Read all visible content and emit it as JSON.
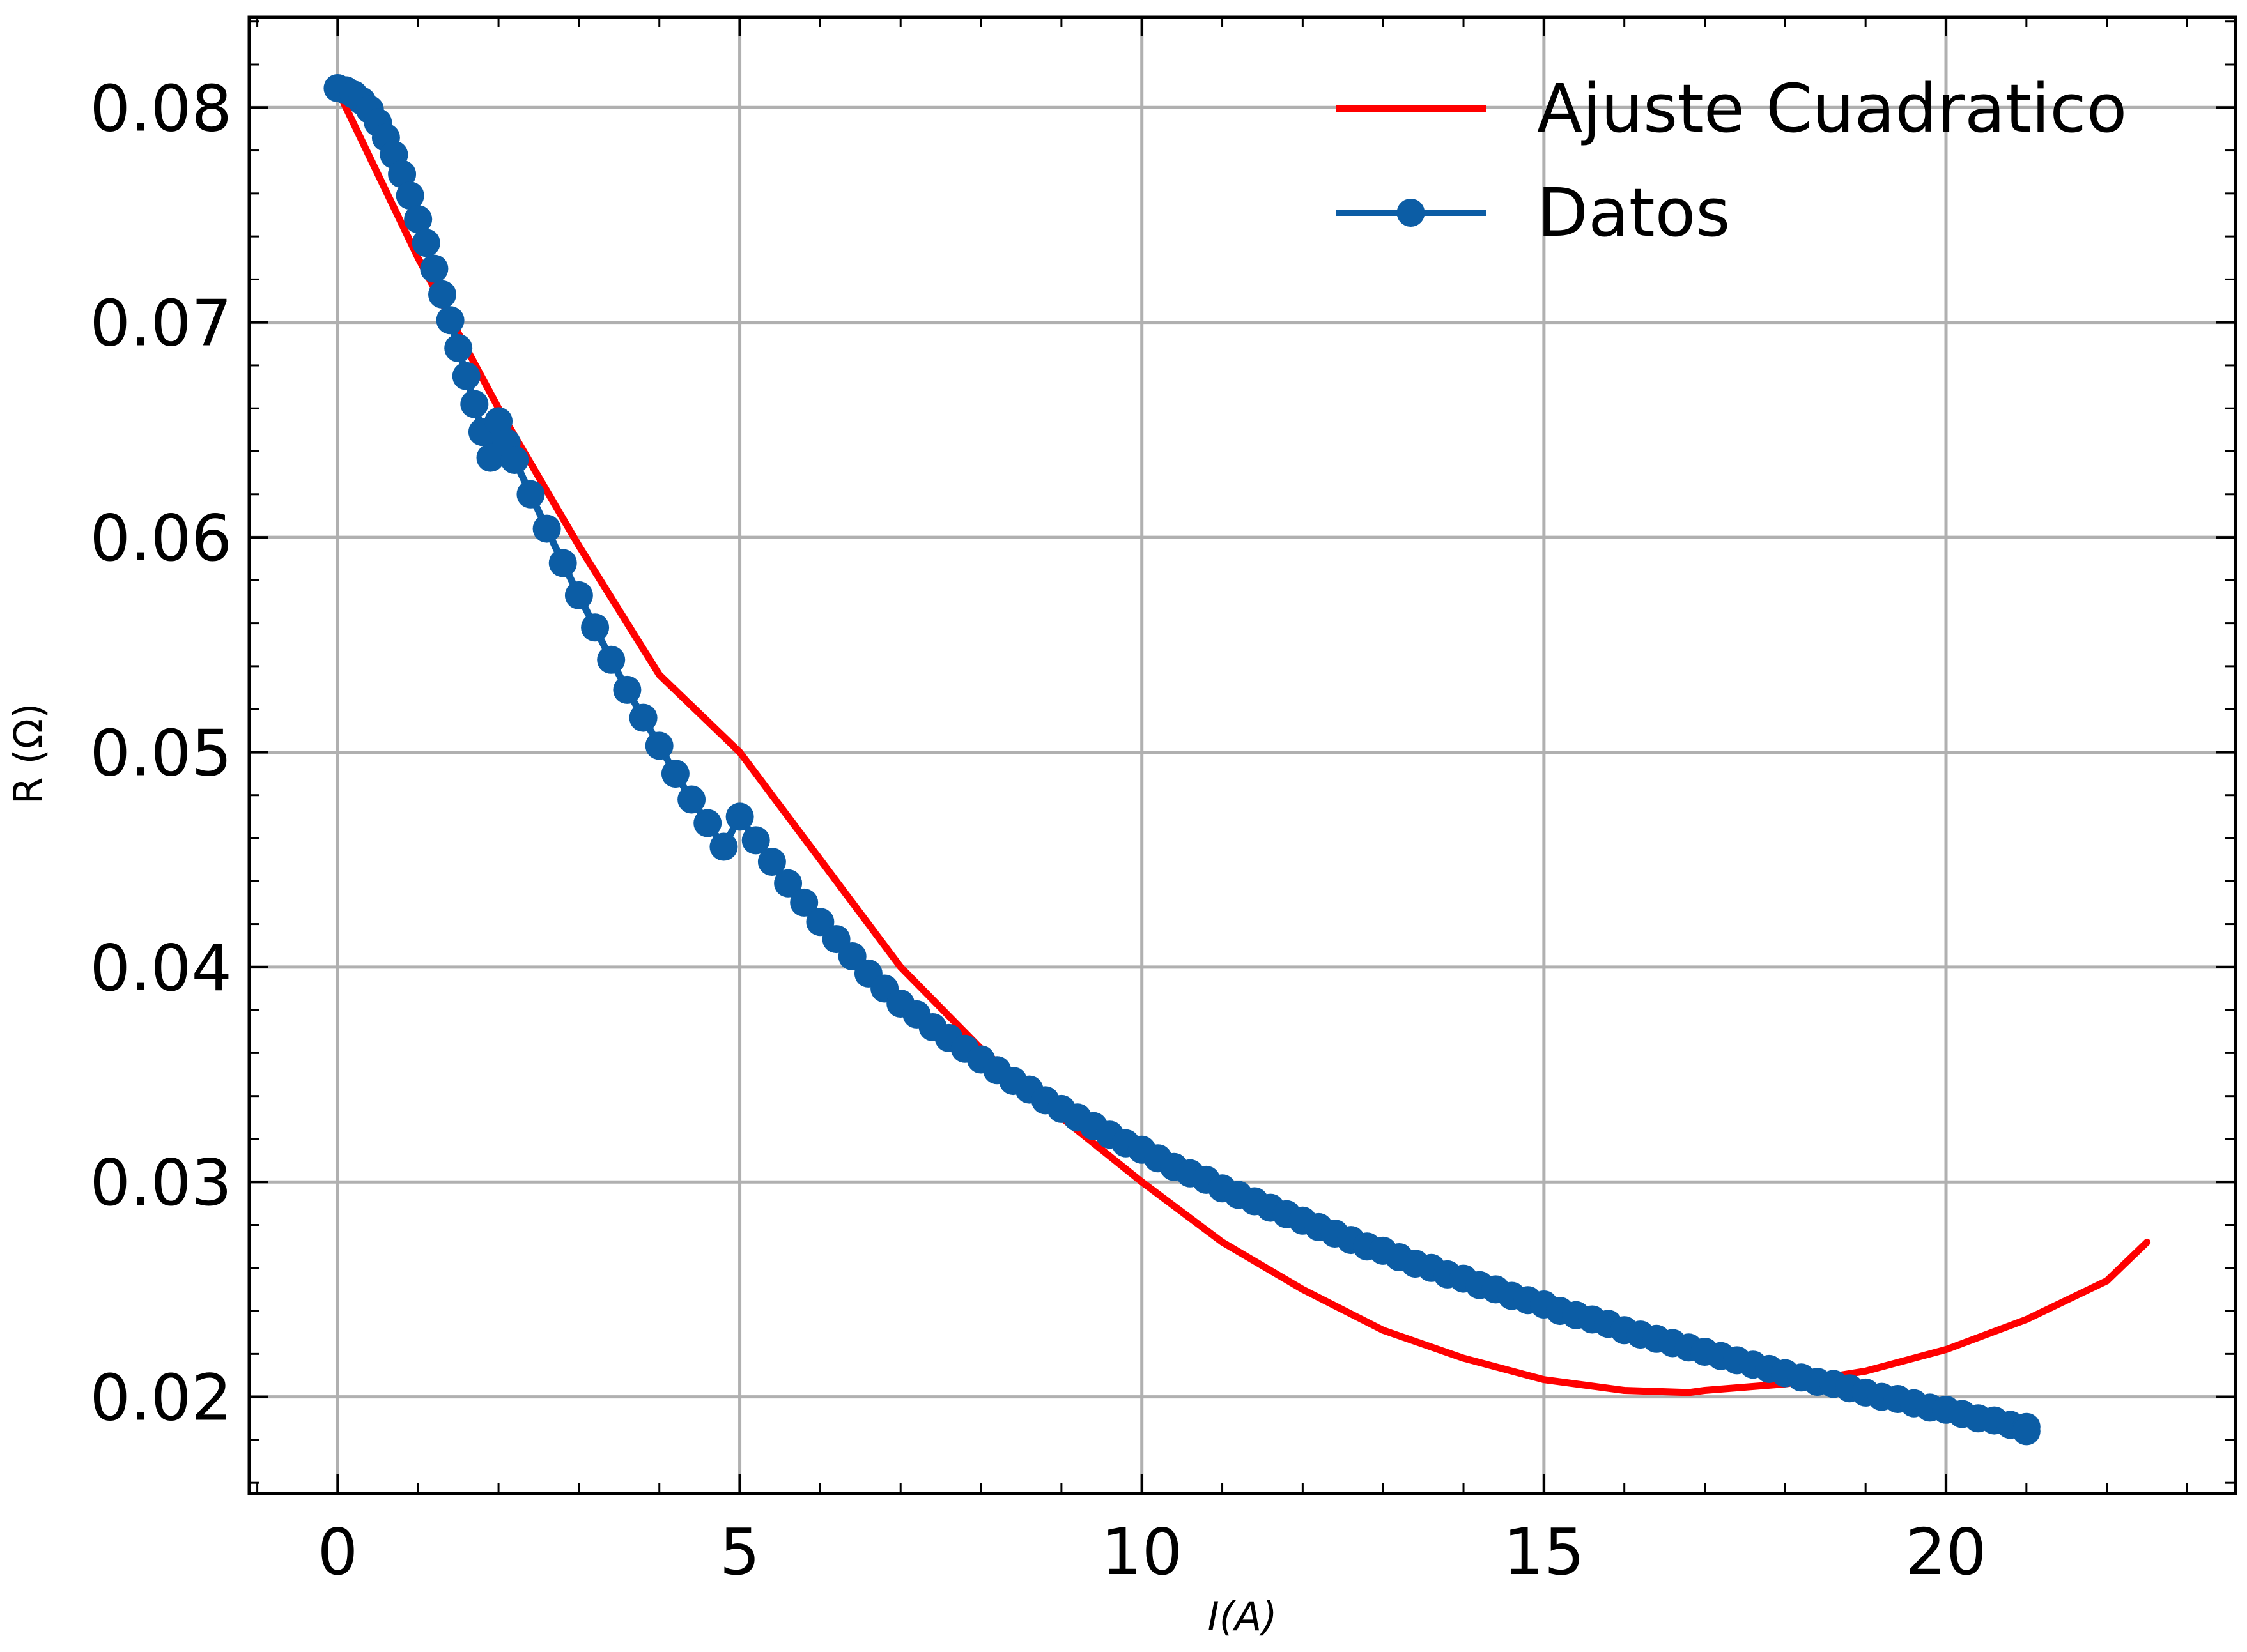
{
  "chart_data": {
    "type": "line",
    "xlabel": "I(A)",
    "ylabel": "R (Ω)",
    "xlim": [
      -1.1,
      23.6
    ],
    "ylim": [
      0.0155,
      0.0842
    ],
    "xticks": [
      0,
      5,
      10,
      15,
      20
    ],
    "yticks": [
      0.02,
      0.03,
      0.04,
      0.05,
      0.06,
      0.07,
      0.08
    ],
    "xtick_labels": [
      "0",
      "5",
      "10",
      "15",
      "20"
    ],
    "ytick_labels": [
      "0.02",
      "0.03",
      "0.04",
      "0.05",
      "0.06",
      "0.07",
      "0.08"
    ],
    "grid": true,
    "legend_position": "top-right",
    "series": [
      {
        "name": "Ajuste Cuadratico",
        "kind": "line",
        "color": "#ff0000",
        "x": [
          0,
          1,
          2,
          3,
          4,
          5,
          6,
          7,
          8,
          9,
          10,
          11,
          12,
          13,
          14,
          15,
          16,
          16.8,
          17,
          18,
          19,
          20,
          21,
          22,
          22.5
        ],
        "y": [
          0.0808,
          0.073,
          0.066,
          0.0596,
          0.0536,
          0.05,
          0.045,
          0.04,
          0.0362,
          0.033,
          0.03,
          0.0272,
          0.025,
          0.0231,
          0.0218,
          0.0208,
          0.0203,
          0.0202,
          0.0203,
          0.0206,
          0.0212,
          0.0222,
          0.0236,
          0.0254,
          0.0272
        ]
      },
      {
        "name": "Datos",
        "kind": "line-markers",
        "color": "#0c5da5",
        "x": [
          0,
          0.1,
          0.2,
          0.3,
          0.4,
          0.5,
          0.6,
          0.7,
          0.8,
          0.9,
          1.0,
          1.1,
          1.2,
          1.3,
          1.4,
          1.5,
          1.6,
          1.7,
          1.8,
          1.9,
          2.0,
          2.1,
          2.2,
          2.4,
          2.6,
          2.8,
          3.0,
          3.2,
          3.4,
          3.6,
          3.8,
          4.0,
          4.2,
          4.4,
          4.6,
          4.8,
          5.0,
          5.2,
          5.4,
          5.6,
          5.8,
          6.0,
          6.2,
          6.4,
          6.6,
          6.8,
          7.0,
          7.2,
          7.4,
          7.6,
          7.8,
          8.0,
          8.2,
          8.4,
          8.6,
          8.8,
          9.0,
          9.2,
          9.4,
          9.6,
          9.8,
          10.0,
          10.2,
          10.4,
          10.6,
          10.8,
          11.0,
          11.2,
          11.4,
          11.6,
          11.8,
          12.0,
          12.2,
          12.4,
          12.6,
          12.8,
          13.0,
          13.2,
          13.4,
          13.6,
          13.8,
          14.0,
          14.2,
          14.4,
          14.6,
          14.8,
          15.0,
          15.2,
          15.4,
          15.6,
          15.8,
          16.0,
          16.2,
          16.4,
          16.6,
          16.8,
          17.0,
          17.2,
          17.4,
          17.6,
          17.8,
          18.0,
          18.2,
          18.4,
          18.6,
          18.8,
          19.0,
          19.2,
          19.4,
          19.6,
          19.8,
          20.0,
          20.2,
          20.4,
          20.6,
          20.8,
          21.0,
          21.0
        ],
        "y": [
          0.0809,
          0.0808,
          0.0806,
          0.0803,
          0.0799,
          0.0793,
          0.0786,
          0.0778,
          0.0769,
          0.0759,
          0.0748,
          0.0737,
          0.0725,
          0.0713,
          0.0701,
          0.0688,
          0.0675,
          0.0662,
          0.0649,
          0.0637,
          0.0654,
          0.0644,
          0.0636,
          0.062,
          0.0604,
          0.0588,
          0.0573,
          0.0558,
          0.0543,
          0.0529,
          0.0516,
          0.0503,
          0.049,
          0.0478,
          0.0467,
          0.0456,
          0.047,
          0.0459,
          0.0449,
          0.0439,
          0.043,
          0.0421,
          0.0413,
          0.0405,
          0.0397,
          0.039,
          0.0383,
          0.0378,
          0.0372,
          0.0367,
          0.0362,
          0.0357,
          0.0352,
          0.0347,
          0.0343,
          0.0338,
          0.0334,
          0.033,
          0.0326,
          0.0322,
          0.0318,
          0.0315,
          0.0311,
          0.0307,
          0.0304,
          0.0301,
          0.0297,
          0.0294,
          0.0291,
          0.0288,
          0.0285,
          0.0282,
          0.0279,
          0.0276,
          0.0273,
          0.027,
          0.0268,
          0.0265,
          0.0262,
          0.026,
          0.0257,
          0.0255,
          0.0252,
          0.025,
          0.0247,
          0.0245,
          0.0243,
          0.024,
          0.0238,
          0.0236,
          0.0234,
          0.0231,
          0.0229,
          0.0227,
          0.0225,
          0.0223,
          0.0221,
          0.0219,
          0.0217,
          0.0215,
          0.0213,
          0.0211,
          0.0209,
          0.0207,
          0.0206,
          0.0204,
          0.0202,
          0.02,
          0.0199,
          0.0197,
          0.0195,
          0.0194,
          0.0192,
          0.019,
          0.0189,
          0.0187,
          0.0186,
          0.0184
        ]
      }
    ]
  }
}
